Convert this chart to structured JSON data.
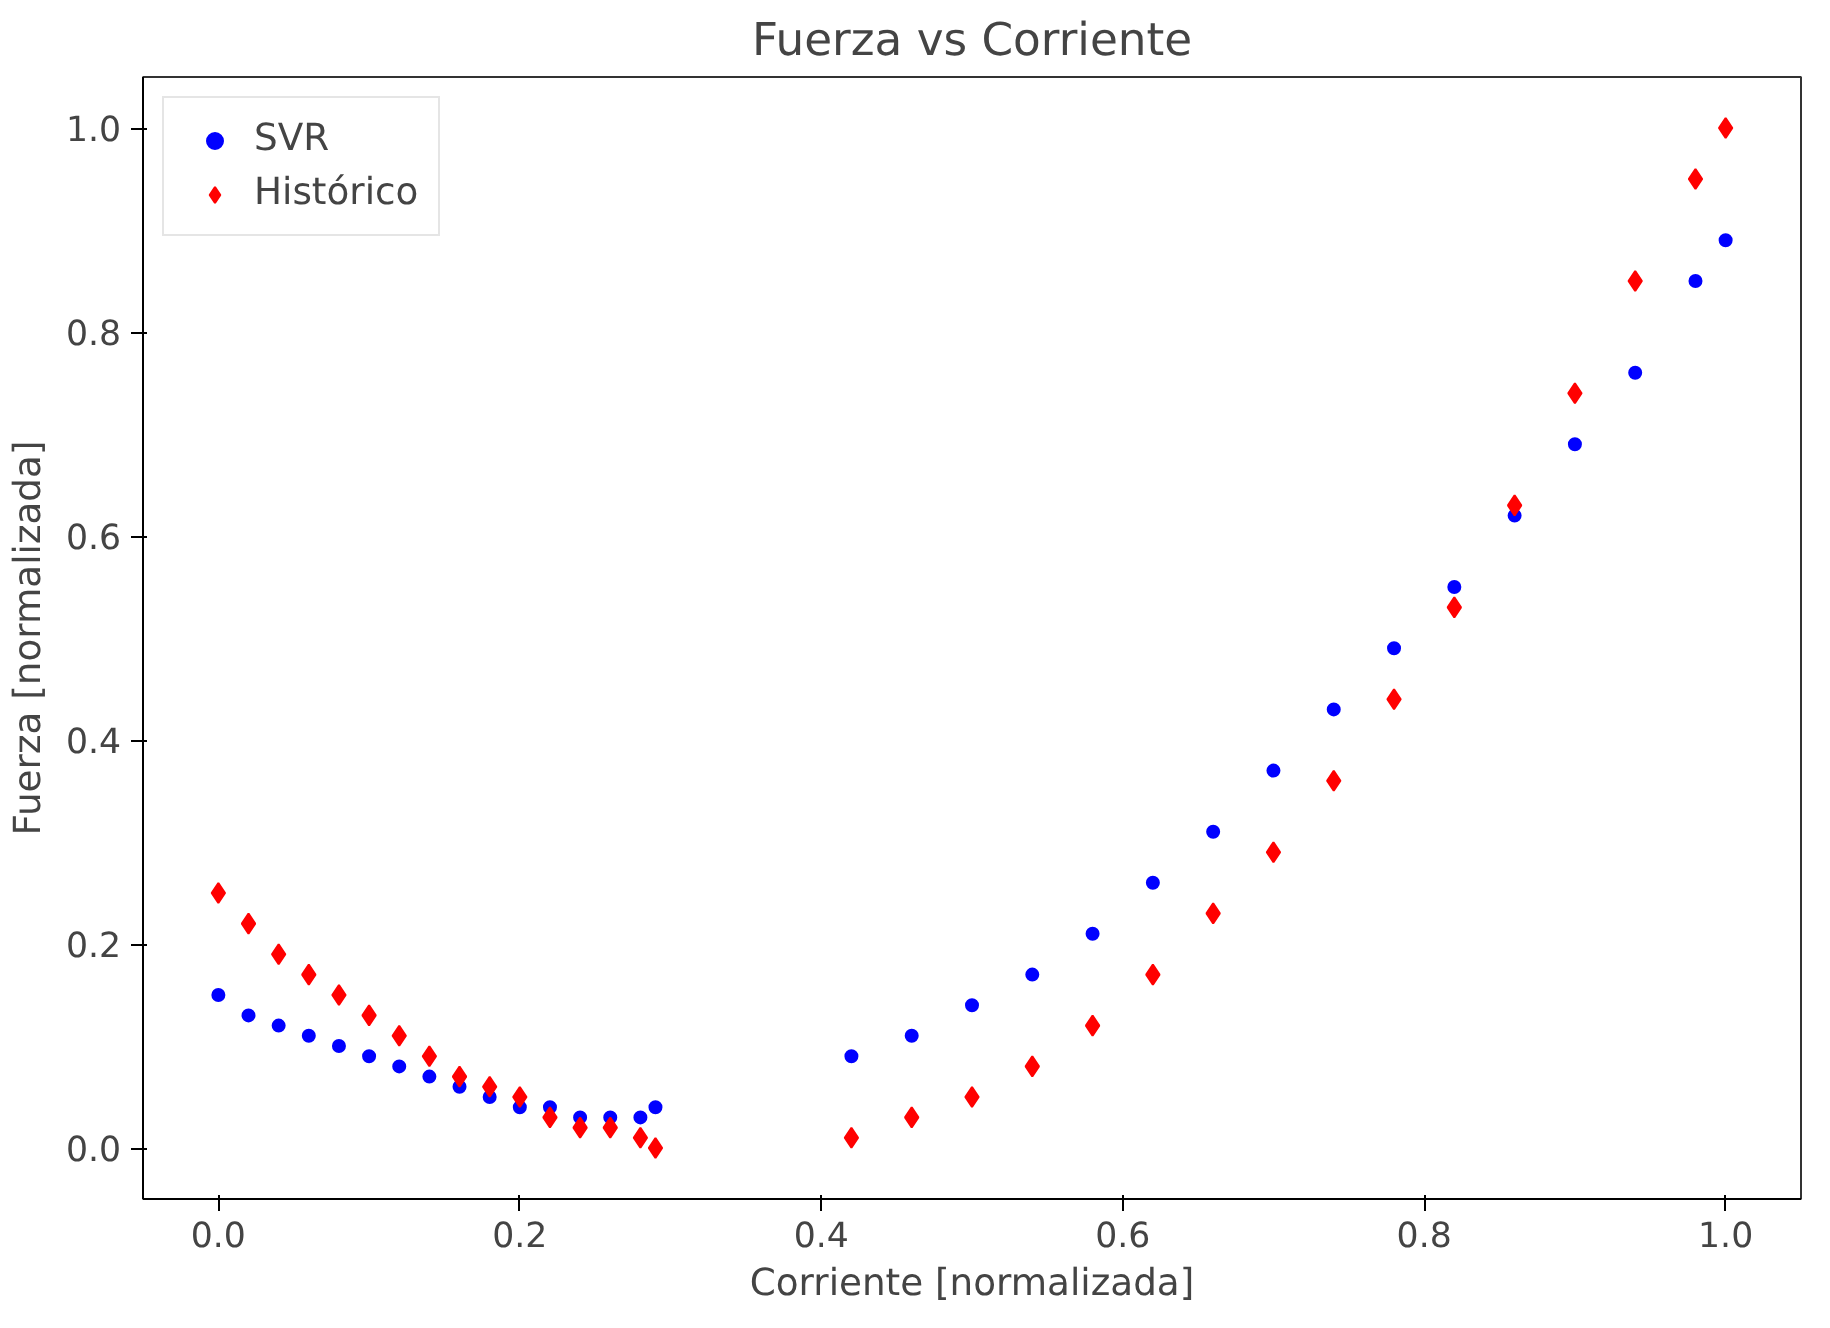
{
  "chart_data": {
    "type": "scatter",
    "title": "Fuerza vs Corriente",
    "xlabel": "Corriente [normalizada]",
    "ylabel": "Fuerza [normalizada]",
    "xlim": [
      -0.05,
      1.05
    ],
    "ylim": [
      -0.05,
      1.05
    ],
    "xticks": [
      {
        "value": 0,
        "label": "0.0"
      },
      0.2,
      0.4,
      0.6,
      0.8,
      {
        "value": 1,
        "label": "1.0"
      }
    ],
    "yticks": [
      {
        "value": 0,
        "label": "0.0"
      },
      0.2,
      0.4,
      0.6,
      0.8,
      {
        "value": 1,
        "label": "1.0"
      }
    ],
    "grid": false,
    "legend": "top left",
    "series": [
      {
        "name": "SVR",
        "color": "#0000ff",
        "marker": "circle",
        "x": [
          0,
          0.02,
          0.04,
          0.06,
          0.08,
          0.1,
          0.12,
          0.14,
          0.16,
          0.18,
          0.2,
          0.22,
          0.24,
          0.26,
          0.28,
          0.29,
          0.42,
          0.46,
          0.5,
          0.54,
          0.58,
          0.62,
          0.66,
          0.7,
          0.74,
          0.78,
          0.82,
          0.86,
          0.9,
          0.94,
          0.98,
          1.0
        ],
        "values": [
          0.15,
          0.13,
          0.12,
          0.11,
          0.1,
          0.09,
          0.08,
          0.07,
          0.06,
          0.05,
          0.04,
          0.04,
          0.03,
          0.03,
          0.03,
          0.04,
          0.09,
          0.11,
          0.14,
          0.17,
          0.21,
          0.26,
          0.31,
          0.37,
          0.43,
          0.49,
          0.55,
          0.62,
          0.69,
          0.76,
          0.85,
          0.89
        ]
      },
      {
        "name": "Histórico",
        "color": "#ff0000",
        "marker": "diamond",
        "x": [
          0,
          0.02,
          0.04,
          0.06,
          0.08,
          0.1,
          0.12,
          0.14,
          0.16,
          0.18,
          0.2,
          0.22,
          0.24,
          0.26,
          0.28,
          0.29,
          0.42,
          0.46,
          0.5,
          0.54,
          0.58,
          0.62,
          0.66,
          0.7,
          0.74,
          0.78,
          0.82,
          0.86,
          0.9,
          0.94,
          0.98,
          1.0
        ],
        "values": [
          0.25,
          0.22,
          0.19,
          0.17,
          0.15,
          0.13,
          0.11,
          0.09,
          0.07,
          0.06,
          0.05,
          0.03,
          0.02,
          0.02,
          0.01,
          0.0,
          0.01,
          0.03,
          0.05,
          0.08,
          0.12,
          0.17,
          0.23,
          0.29,
          0.36,
          0.44,
          0.53,
          0.63,
          0.74,
          0.85,
          0.95,
          1.0
        ]
      }
    ]
  }
}
